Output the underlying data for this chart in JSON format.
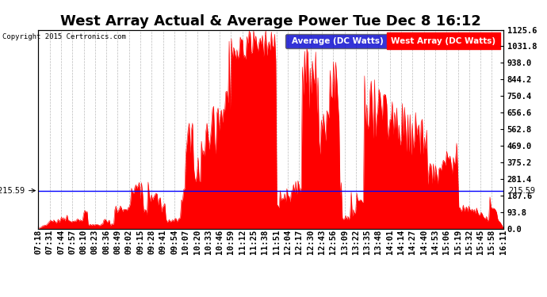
{
  "title": "West Array Actual & Average Power Tue Dec 8 16:12",
  "copyright": "Copyright 2015 Certronics.com",
  "legend_blue_label": "Average (DC Watts)",
  "legend_red_label": "West Array (DC Watts)",
  "y_right_ticks": [
    0.0,
    93.8,
    187.6,
    281.4,
    375.2,
    469.0,
    562.8,
    656.6,
    750.4,
    844.2,
    938.0,
    1031.8,
    1125.6
  ],
  "ylim": [
    0.0,
    1125.6
  ],
  "avg_line_y": 215.59,
  "background_color": "#ffffff",
  "fill_color": "#ff0000",
  "avg_line_color": "#0000ff",
  "grid_color": "#aaaaaa",
  "title_fontsize": 13,
  "tick_fontsize": 7.5,
  "x_tick_labels": [
    "07:18",
    "07:31",
    "07:44",
    "07:57",
    "08:10",
    "08:23",
    "08:36",
    "08:49",
    "09:02",
    "09:15",
    "09:28",
    "09:41",
    "09:54",
    "10:07",
    "10:20",
    "10:33",
    "10:46",
    "10:59",
    "11:12",
    "11:25",
    "11:38",
    "11:51",
    "12:04",
    "12:17",
    "12:30",
    "12:43",
    "12:56",
    "13:09",
    "13:22",
    "13:35",
    "13:48",
    "14:01",
    "14:14",
    "14:27",
    "14:40",
    "14:53",
    "15:06",
    "15:19",
    "15:32",
    "15:45",
    "15:58",
    "16:11"
  ]
}
